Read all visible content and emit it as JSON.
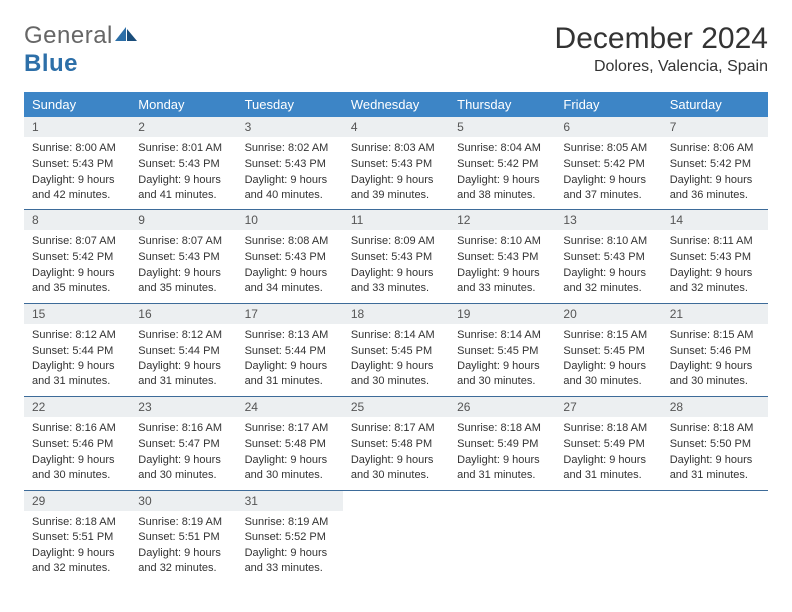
{
  "logo": {
    "text1": "General",
    "text2": "Blue"
  },
  "title": "December 2024",
  "location": "Dolores, Valencia, Spain",
  "colors": {
    "header_bg": "#3d85c6",
    "header_text": "#ffffff",
    "daynum_bg": "#eceff1",
    "border": "#3d6b99",
    "text": "#333333",
    "logo_blue": "#2d6fa8"
  },
  "weekdays": [
    "Sunday",
    "Monday",
    "Tuesday",
    "Wednesday",
    "Thursday",
    "Friday",
    "Saturday"
  ],
  "days": [
    {
      "n": "1",
      "sr": "8:00 AM",
      "ss": "5:43 PM",
      "dl": "9 hours and 42 minutes."
    },
    {
      "n": "2",
      "sr": "8:01 AM",
      "ss": "5:43 PM",
      "dl": "9 hours and 41 minutes."
    },
    {
      "n": "3",
      "sr": "8:02 AM",
      "ss": "5:43 PM",
      "dl": "9 hours and 40 minutes."
    },
    {
      "n": "4",
      "sr": "8:03 AM",
      "ss": "5:43 PM",
      "dl": "9 hours and 39 minutes."
    },
    {
      "n": "5",
      "sr": "8:04 AM",
      "ss": "5:42 PM",
      "dl": "9 hours and 38 minutes."
    },
    {
      "n": "6",
      "sr": "8:05 AM",
      "ss": "5:42 PM",
      "dl": "9 hours and 37 minutes."
    },
    {
      "n": "7",
      "sr": "8:06 AM",
      "ss": "5:42 PM",
      "dl": "9 hours and 36 minutes."
    },
    {
      "n": "8",
      "sr": "8:07 AM",
      "ss": "5:42 PM",
      "dl": "9 hours and 35 minutes."
    },
    {
      "n": "9",
      "sr": "8:07 AM",
      "ss": "5:43 PM",
      "dl": "9 hours and 35 minutes."
    },
    {
      "n": "10",
      "sr": "8:08 AM",
      "ss": "5:43 PM",
      "dl": "9 hours and 34 minutes."
    },
    {
      "n": "11",
      "sr": "8:09 AM",
      "ss": "5:43 PM",
      "dl": "9 hours and 33 minutes."
    },
    {
      "n": "12",
      "sr": "8:10 AM",
      "ss": "5:43 PM",
      "dl": "9 hours and 33 minutes."
    },
    {
      "n": "13",
      "sr": "8:10 AM",
      "ss": "5:43 PM",
      "dl": "9 hours and 32 minutes."
    },
    {
      "n": "14",
      "sr": "8:11 AM",
      "ss": "5:43 PM",
      "dl": "9 hours and 32 minutes."
    },
    {
      "n": "15",
      "sr": "8:12 AM",
      "ss": "5:44 PM",
      "dl": "9 hours and 31 minutes."
    },
    {
      "n": "16",
      "sr": "8:12 AM",
      "ss": "5:44 PM",
      "dl": "9 hours and 31 minutes."
    },
    {
      "n": "17",
      "sr": "8:13 AM",
      "ss": "5:44 PM",
      "dl": "9 hours and 31 minutes."
    },
    {
      "n": "18",
      "sr": "8:14 AM",
      "ss": "5:45 PM",
      "dl": "9 hours and 30 minutes."
    },
    {
      "n": "19",
      "sr": "8:14 AM",
      "ss": "5:45 PM",
      "dl": "9 hours and 30 minutes."
    },
    {
      "n": "20",
      "sr": "8:15 AM",
      "ss": "5:45 PM",
      "dl": "9 hours and 30 minutes."
    },
    {
      "n": "21",
      "sr": "8:15 AM",
      "ss": "5:46 PM",
      "dl": "9 hours and 30 minutes."
    },
    {
      "n": "22",
      "sr": "8:16 AM",
      "ss": "5:46 PM",
      "dl": "9 hours and 30 minutes."
    },
    {
      "n": "23",
      "sr": "8:16 AM",
      "ss": "5:47 PM",
      "dl": "9 hours and 30 minutes."
    },
    {
      "n": "24",
      "sr": "8:17 AM",
      "ss": "5:48 PM",
      "dl": "9 hours and 30 minutes."
    },
    {
      "n": "25",
      "sr": "8:17 AM",
      "ss": "5:48 PM",
      "dl": "9 hours and 30 minutes."
    },
    {
      "n": "26",
      "sr": "8:18 AM",
      "ss": "5:49 PM",
      "dl": "9 hours and 31 minutes."
    },
    {
      "n": "27",
      "sr": "8:18 AM",
      "ss": "5:49 PM",
      "dl": "9 hours and 31 minutes."
    },
    {
      "n": "28",
      "sr": "8:18 AM",
      "ss": "5:50 PM",
      "dl": "9 hours and 31 minutes."
    },
    {
      "n": "29",
      "sr": "8:18 AM",
      "ss": "5:51 PM",
      "dl": "9 hours and 32 minutes."
    },
    {
      "n": "30",
      "sr": "8:19 AM",
      "ss": "5:51 PM",
      "dl": "9 hours and 32 minutes."
    },
    {
      "n": "31",
      "sr": "8:19 AM",
      "ss": "5:52 PM",
      "dl": "9 hours and 33 minutes."
    }
  ],
  "labels": {
    "sunrise": "Sunrise:",
    "sunset": "Sunset:",
    "daylight": "Daylight:"
  }
}
